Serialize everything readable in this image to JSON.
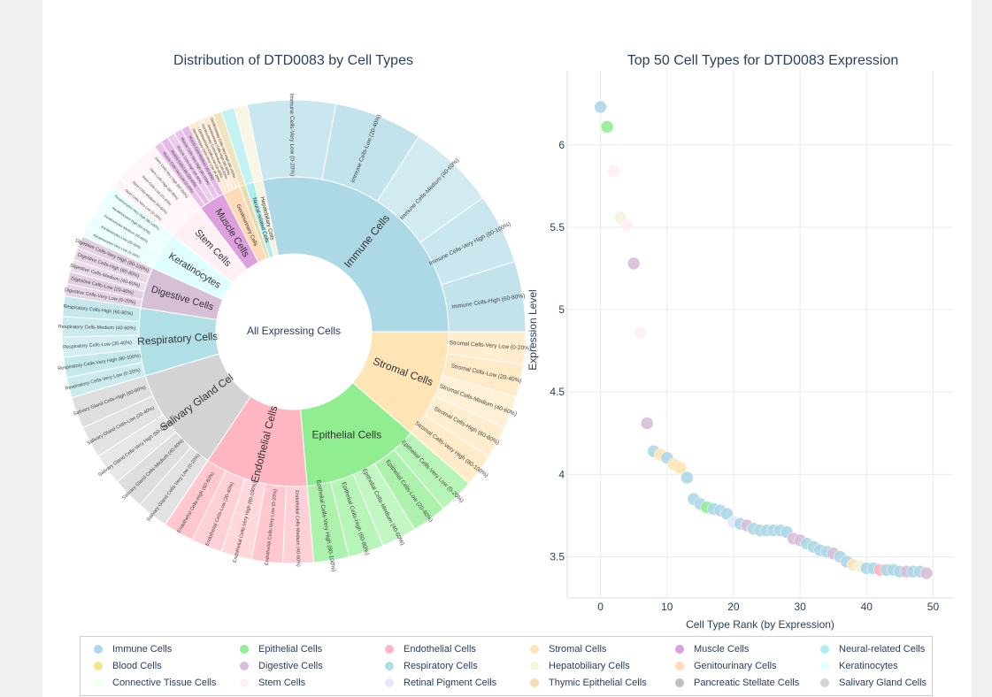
{
  "chart_data": [
    {
      "type": "sunburst",
      "title": "Distribution of DTD0083 by Cell Types",
      "center_label": "All Expressing Cells",
      "groups": [
        {
          "name": "Immune Cells",
          "value": 92,
          "color": "#ADD8E6",
          "label": "Immune Cells",
          "children": [
            {
              "label": "Immune Cells-High (60-80%)",
              "value": 16
            },
            {
              "label": "Immune Cells-Very High (80-100%)",
              "value": 16
            },
            {
              "label": "Immune Cells-Medium (40-60%)",
              "value": 20
            },
            {
              "label": "Immune Cells-Low (20-40%)",
              "value": 20
            },
            {
              "label": "Immune Cells-Very Low (0-20%)",
              "value": 20
            }
          ]
        },
        {
          "name": "Hepatobiliary Cells",
          "value": 3,
          "color": "#f5f3dc",
          "label": "Hepatobiliary Cells",
          "children": [
            {
              "label": "",
              "value": 3
            }
          ]
        },
        {
          "name": "Neural-related Cells",
          "value": 3,
          "color": "#AFEEEE",
          "label": "Neural-related Cells",
          "children": [
            {
              "label": "",
              "value": 3
            }
          ]
        },
        {
          "name": "Blood Cells",
          "value": 2,
          "color": "#e8dcaa",
          "label": "",
          "children": [
            {
              "label": "",
              "value": 2
            }
          ]
        },
        {
          "name": "Genitourinary Cells",
          "value": 6,
          "color": "#FFDAB9",
          "label": "Genitourinary Cells",
          "children": [
            {
              "label": "Genitourinary Cells-Very High (80-100%)",
              "value": 1.2
            },
            {
              "label": "Genitourinary Cells-High (60-80%)",
              "value": 1.2
            },
            {
              "label": "Genitourinary Cells-Medium (40-60%)",
              "value": 1.2
            },
            {
              "label": "Genitourinary Cells-Low (20-40%)",
              "value": 1.2
            },
            {
              "label": "Genitourinary Cells-Very Low (0-20%)",
              "value": 1.2
            }
          ]
        },
        {
          "name": "Muscle Cells",
          "value": 9,
          "color": "#DDA0DD",
          "label": "Muscle Cells",
          "children": [
            {
              "label": "Muscle Cells-Medium (40-60%)",
              "value": 1.8
            },
            {
              "label": "Muscle Cells-Very High (80-100%)",
              "value": 1.8
            },
            {
              "label": "Muscle Cells-High (60-80%)",
              "value": 1.8
            },
            {
              "label": "Muscle Cells-Low (20-40%)",
              "value": 1.8
            },
            {
              "label": "Muscle Cells-Very Low (0-20%)",
              "value": 1.8
            }
          ]
        },
        {
          "name": "Stem Cells",
          "value": 13,
          "color": "#FFF0F5",
          "label": "Stem Cells",
          "children": [
            {
              "label": "Stem Cells-Very High (80-100%)",
              "value": 2.6
            },
            {
              "label": "Stem Cells-High (60-80%)",
              "value": 2.6
            },
            {
              "label": "Stem Cells-Low (20-40%)",
              "value": 2.6
            },
            {
              "label": "Stem Cells-Medium (40-60%)",
              "value": 2.6
            },
            {
              "label": "Stem Cells-Very Low (0-20%)",
              "value": 2.6
            }
          ]
        },
        {
          "name": "Keratinocytes",
          "value": 13,
          "color": "#E0FFFF",
          "label": "Keratinocytes",
          "children": [
            {
              "label": "Keratinocytes-Very High (80-100%)",
              "value": 2.6
            },
            {
              "label": "Keratinocytes-High (60-80%)",
              "value": 2.6
            },
            {
              "label": "Keratinocytes-Medium (40-60%)",
              "value": 2.6
            },
            {
              "label": "Keratinocytes-Low (20-40%)",
              "value": 2.6
            },
            {
              "label": "Keratinocytes-Very Low (0-20%)",
              "value": 2.6
            }
          ]
        },
        {
          "name": "Digestive Cells",
          "value": 14,
          "color": "#D8BFD8",
          "label": "Digestive Cells",
          "children": [
            {
              "label": "Digestive Cells-Very High (80-100%)",
              "value": 2.8
            },
            {
              "label": "Digestive Cells-High (60-80%)",
              "value": 2.8
            },
            {
              "label": "Digestive Cells-Medium (40-60%)",
              "value": 2.8
            },
            {
              "label": "Digestive Cells-Low (20-40%)",
              "value": 2.8
            },
            {
              "label": "Digestive Cells-Very Low (0-20%)",
              "value": 2.8
            }
          ]
        },
        {
          "name": "Respiratory Cells",
          "value": 23,
          "color": "#B0E0E6",
          "label": "Respiratory Cells",
          "children": [
            {
              "label": "Respiratory Cells-High (60-80%)",
              "value": 4.6
            },
            {
              "label": "Respiratory Cells-Medium (40-60%)",
              "value": 4.6
            },
            {
              "label": "Respiratory Cells-Low (20-40%)",
              "value": 4.6
            },
            {
              "label": "Respiratory Cells-Very High (80-100%)",
              "value": 4.6
            },
            {
              "label": "Respiratory Cells-Very Low (0-20%)",
              "value": 4.6
            }
          ]
        },
        {
          "name": "Salivary Gland Cells",
          "value": 36,
          "color": "#D3D3D3",
          "label": "Salivary Gland Cells",
          "children": [
            {
              "label": "Salivary Gland Cells-High (60-80%)",
              "value": 7.2
            },
            {
              "label": "Salivary Gland Cells-Low (20-40%)",
              "value": 7.2
            },
            {
              "label": "Salivary Gland Cells-Very High (80-100%)",
              "value": 7.2
            },
            {
              "label": "Salivary Gland Cells-Medium (40-60%)",
              "value": 7.2
            },
            {
              "label": "Salivary Gland Cells-Very Low (0-20%)",
              "value": 7.2
            }
          ]
        },
        {
          "name": "Endothelial Cells",
          "value": 35,
          "color": "#FFB6C1",
          "label": "Endothelial Cells",
          "children": [
            {
              "label": "Endothelial Cells-High (60-80%)",
              "value": 7
            },
            {
              "label": "Endothelial Cells-Low (20-40%)",
              "value": 7
            },
            {
              "label": "Endothelial Cells-Very High (80-100%)",
              "value": 7
            },
            {
              "label": "Endothelial Cells-Very Low (0-20%)",
              "value": 7
            },
            {
              "label": "Endothelial Cells-Medium (40-60%)",
              "value": 7
            }
          ]
        },
        {
          "name": "Epithelial Cells",
          "value": 40,
          "color": "#90EE90",
          "label": "Epithelial Cells",
          "children": [
            {
              "label": "Epithelial Cells-Very High (80-100%)",
              "value": 8
            },
            {
              "label": "Epithelial Cells-High (60-80%)",
              "value": 8
            },
            {
              "label": "Epithelial Cells-Medium (40-60%)",
              "value": 8
            },
            {
              "label": "Epithelial Cells-Low (20-40%)",
              "value": 8
            },
            {
              "label": "Epithelial Cells-Very Low (0-20%)",
              "value": 8
            }
          ]
        },
        {
          "name": "Stromal Cells",
          "value": 37,
          "color": "#FFE4B5",
          "label": "Stromal Cells",
          "children": [
            {
              "label": "Stromal Cells-Very High (80-100%)",
              "value": 7.4
            },
            {
              "label": "Stromal Cells-High (60-80%)",
              "value": 7.4
            },
            {
              "label": "Stromal Cells-Medium (40-60%)",
              "value": 7.4
            },
            {
              "label": "Stromal Cells-Low (20-40%)",
              "value": 7.4
            },
            {
              "label": "Stromal Cells-Very Low (0-20%)",
              "value": 7.4
            }
          ]
        }
      ]
    },
    {
      "type": "scatter",
      "title": "Top 50 Cell Types for DTD0083 Expression",
      "xlabel": "Cell Type Rank (by Expression)",
      "ylabel": "Expression Level",
      "xlim": [
        -5,
        53
      ],
      "ylim": [
        3.25,
        6.45
      ],
      "xticks": [
        0,
        10,
        20,
        30,
        40,
        50
      ],
      "yticks": [
        3.5,
        4,
        4.5,
        5,
        5.5,
        6
      ],
      "grid": true,
      "points": [
        {
          "x": 0,
          "y": 6.23,
          "color": "#ADD8E6"
        },
        {
          "x": 1,
          "y": 6.11,
          "color": "#90EE90"
        },
        {
          "x": 2,
          "y": 5.84,
          "color": "#FFF0F5"
        },
        {
          "x": 3,
          "y": 5.56,
          "color": "#f5f3dc"
        },
        {
          "x": 4,
          "y": 5.51,
          "color": "#FFF0F5"
        },
        {
          "x": 5,
          "y": 5.28,
          "color": "#D8BFD8"
        },
        {
          "x": 6,
          "y": 4.86,
          "color": "#FFF0F5"
        },
        {
          "x": 7,
          "y": 4.31,
          "color": "#D8BFD8"
        },
        {
          "x": 8,
          "y": 4.14,
          "color": "#ADD8E6"
        },
        {
          "x": 9,
          "y": 4.12,
          "color": "#FFE4B5"
        },
        {
          "x": 10,
          "y": 4.1,
          "color": "#ADD8E6"
        },
        {
          "x": 11,
          "y": 4.06,
          "color": "#FFE4B5"
        },
        {
          "x": 12,
          "y": 4.04,
          "color": "#FFE4B5"
        },
        {
          "x": 13,
          "y": 3.98,
          "color": "#ADD8E6"
        },
        {
          "x": 14,
          "y": 3.85,
          "color": "#ADD8E6"
        },
        {
          "x": 15,
          "y": 3.82,
          "color": "#ADD8E6"
        },
        {
          "x": 16,
          "y": 3.8,
          "color": "#90EE90"
        },
        {
          "x": 17,
          "y": 3.79,
          "color": "#ADD8E6"
        },
        {
          "x": 18,
          "y": 3.78,
          "color": "#ADD8E6"
        },
        {
          "x": 19,
          "y": 3.76,
          "color": "#ADD8E6"
        },
        {
          "x": 20,
          "y": 3.71,
          "color": "#E6E6FA"
        },
        {
          "x": 21,
          "y": 3.7,
          "color": "#ADD8E6"
        },
        {
          "x": 22,
          "y": 3.69,
          "color": "#D8BFD8"
        },
        {
          "x": 23,
          "y": 3.67,
          "color": "#ADD8E6"
        },
        {
          "x": 24,
          "y": 3.66,
          "color": "#ADD8E6"
        },
        {
          "x": 25,
          "y": 3.66,
          "color": "#ADD8E6"
        },
        {
          "x": 26,
          "y": 3.66,
          "color": "#ADD8E6"
        },
        {
          "x": 27,
          "y": 3.66,
          "color": "#ADD8E6"
        },
        {
          "x": 28,
          "y": 3.65,
          "color": "#ADD8E6"
        },
        {
          "x": 29,
          "y": 3.61,
          "color": "#D8BFD8"
        },
        {
          "x": 30,
          "y": 3.6,
          "color": "#D8BFD8"
        },
        {
          "x": 31,
          "y": 3.58,
          "color": "#ADD8E6"
        },
        {
          "x": 32,
          "y": 3.56,
          "color": "#ADD8E6"
        },
        {
          "x": 33,
          "y": 3.54,
          "color": "#ADD8E6"
        },
        {
          "x": 34,
          "y": 3.53,
          "color": "#ADD8E6"
        },
        {
          "x": 35,
          "y": 3.52,
          "color": "#D8BFD8"
        },
        {
          "x": 36,
          "y": 3.5,
          "color": "#ADD8E6"
        },
        {
          "x": 37,
          "y": 3.47,
          "color": "#ADD8E6"
        },
        {
          "x": 38,
          "y": 3.45,
          "color": "#FFE4B5"
        },
        {
          "x": 39,
          "y": 3.44,
          "color": "#f5f3dc"
        },
        {
          "x": 40,
          "y": 3.43,
          "color": "#ADD8E6"
        },
        {
          "x": 41,
          "y": 3.43,
          "color": "#ADD8E6"
        },
        {
          "x": 42,
          "y": 3.42,
          "color": "#FFB6C1"
        },
        {
          "x": 43,
          "y": 3.42,
          "color": "#ADD8E6"
        },
        {
          "x": 44,
          "y": 3.42,
          "color": "#ADD8E6"
        },
        {
          "x": 45,
          "y": 3.41,
          "color": "#ADD8E6"
        },
        {
          "x": 46,
          "y": 3.41,
          "color": "#D8BFD8"
        },
        {
          "x": 47,
          "y": 3.41,
          "color": "#ADD8E6"
        },
        {
          "x": 48,
          "y": 3.41,
          "color": "#ADD8E6"
        },
        {
          "x": 49,
          "y": 3.4,
          "color": "#D8BFD8"
        }
      ]
    }
  ],
  "legend": {
    "items": [
      {
        "label": "Immune Cells",
        "color": "#ADD8E6"
      },
      {
        "label": "Epithelial Cells",
        "color": "#90EE90"
      },
      {
        "label": "Endothelial Cells",
        "color": "#FFB6C1"
      },
      {
        "label": "Stromal Cells",
        "color": "#FFE4B5"
      },
      {
        "label": "Muscle Cells",
        "color": "#DDA0DD"
      },
      {
        "label": "Neural-related Cells",
        "color": "#AFEEEE"
      },
      {
        "label": "Blood Cells",
        "color": "#F0E68C"
      },
      {
        "label": "Digestive Cells",
        "color": "#D8BFD8"
      },
      {
        "label": "Respiratory Cells",
        "color": "#B0E0E6"
      },
      {
        "label": "Hepatobiliary Cells",
        "color": "#F5F5DC"
      },
      {
        "label": "Genitourinary Cells",
        "color": "#FFDAB9"
      },
      {
        "label": "Keratinocytes",
        "color": "#E0FFFF"
      },
      {
        "label": "Connective Tissue Cells",
        "color": "#F0FFF0"
      },
      {
        "label": "Stem Cells",
        "color": "#FFF0F5"
      },
      {
        "label": "Retinal Pigment Cells",
        "color": "#E6E6FA"
      },
      {
        "label": "Thymic Epithelial Cells",
        "color": "#F5DEB3"
      },
      {
        "label": "Pancreatic Stellate Cells",
        "color": "#C0C0C0"
      },
      {
        "label": "Salivary Gland Cells",
        "color": "#D3D3D3"
      }
    ]
  }
}
